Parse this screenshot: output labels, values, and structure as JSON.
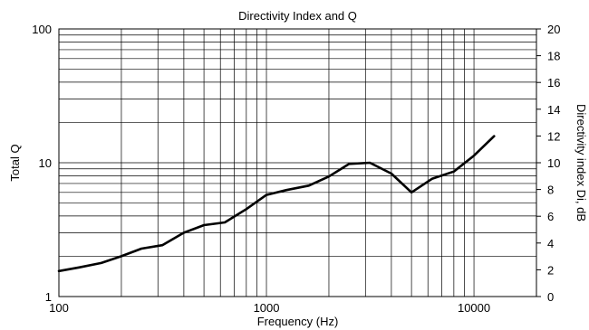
{
  "chart_data": {
    "type": "line",
    "title": "Directivity Index and Q",
    "xlabel": "Frequency (Hz)",
    "ylabel": "Total Q",
    "y2label": "Directivity index Di, dB",
    "xscale": "log",
    "yscale": "log",
    "xlim": [
      100,
      20000
    ],
    "ylim": [
      1,
      100
    ],
    "y2lim": [
      0,
      20
    ],
    "grid": true,
    "x_tick_labels": [
      "100",
      "1000",
      "10000"
    ],
    "y_tick_labels": [
      "1",
      "10",
      "100"
    ],
    "y2_tick_labels": [
      "0",
      "2",
      "4",
      "6",
      "8",
      "10",
      "12",
      "14",
      "16",
      "18",
      "20"
    ],
    "x_ticks": [
      100,
      1000,
      10000
    ],
    "y_ticks": [
      1,
      10,
      100
    ],
    "y2_ticks": [
      0,
      2,
      4,
      6,
      8,
      10,
      12,
      14,
      16,
      18,
      20
    ],
    "series": [
      {
        "x": [
          100,
          125,
          160,
          200,
          250,
          315,
          400,
          500,
          630,
          800,
          1000,
          1250,
          1600,
          2000,
          2500,
          3150,
          4000,
          5000,
          6300,
          8000,
          10000,
          12500
        ],
        "y": [
          1.55,
          1.65,
          1.78,
          2.0,
          2.28,
          2.42,
          3.0,
          3.42,
          3.58,
          4.5,
          5.75,
          6.25,
          6.75,
          7.9,
          9.8,
          10.0,
          8.3,
          6.0,
          7.6,
          8.6,
          11.3,
          15.8
        ]
      }
    ]
  }
}
